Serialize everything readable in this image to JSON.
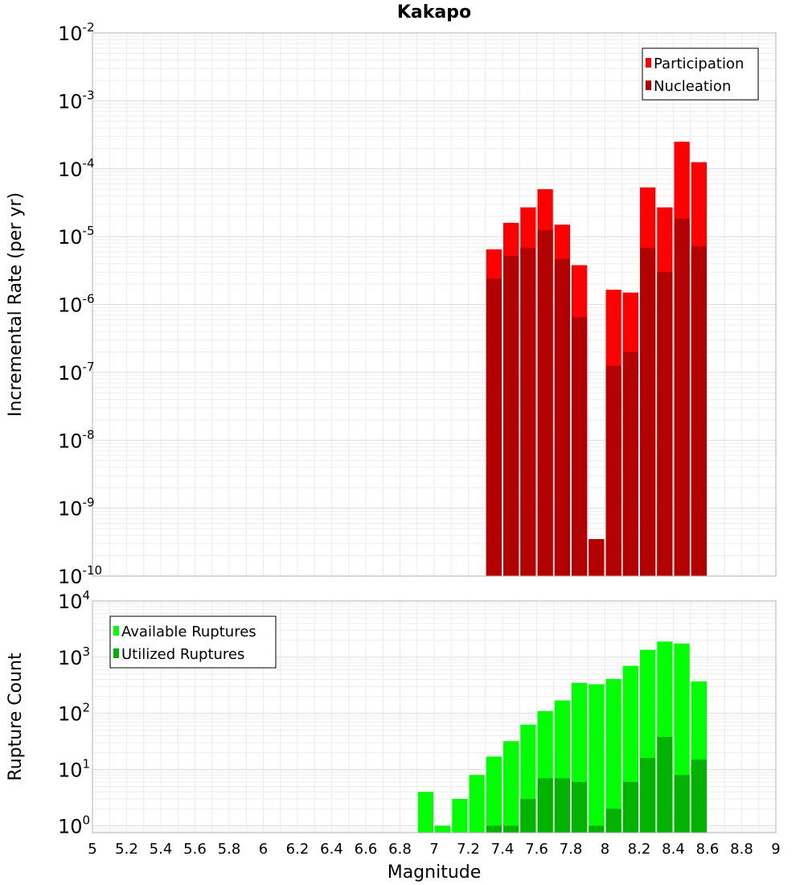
{
  "chart_data": [
    {
      "type": "bar",
      "title": "Kakapo",
      "xlabel": "",
      "ylabel": "Incremental Rate (per yr)",
      "yscale": "log",
      "ylim": [
        1e-10,
        0.01
      ],
      "xlim": [
        5,
        9
      ],
      "ytick_base": "10",
      "ytick_exponents": [
        "-10",
        "-9",
        "-8",
        "-7",
        "-6",
        "-5",
        "-4",
        "-3",
        "-2"
      ],
      "grid": true,
      "legend_position": "top-right",
      "bin_width": 0.1,
      "x": [
        7.35,
        7.45,
        7.55,
        7.65,
        7.75,
        7.85,
        7.95,
        8.05,
        8.15,
        8.25,
        8.35,
        8.45,
        8.55
      ],
      "series": [
        {
          "name": "Participation",
          "color": "#ff0000",
          "values": [
            6.5e-06,
            1.6e-05,
            2.7e-05,
            5e-05,
            1.5e-05,
            3.8e-06,
            3.5e-10,
            1.65e-06,
            1.5e-06,
            5.3e-05,
            2.7e-05,
            0.00025,
            0.000125
          ]
        },
        {
          "name": "Nucleation",
          "color": "#b30000",
          "values": [
            2.4e-06,
            5.2e-06,
            6.8e-06,
            1.25e-05,
            4.7e-06,
            6.5e-07,
            3.5e-10,
            1.25e-07,
            2e-07,
            6.8e-06,
            3e-06,
            1.85e-05,
            7.2e-06
          ]
        }
      ]
    },
    {
      "type": "bar",
      "title": "",
      "xlabel": "Magnitude",
      "ylabel": "Rupture Count",
      "yscale": "log",
      "ylim": [
        0.75,
        10000
      ],
      "xlim": [
        5,
        9
      ],
      "ytick_base": "10",
      "ytick_exponents": [
        "0",
        "1",
        "2",
        "3",
        "4"
      ],
      "xticks": [
        "5",
        "5.2",
        "5.4",
        "5.6",
        "5.8",
        "6",
        "6.2",
        "6.4",
        "6.6",
        "6.8",
        "7",
        "7.2",
        "7.4",
        "7.6",
        "7.8",
        "8",
        "8.2",
        "8.4",
        "8.6",
        "8.8",
        "9"
      ],
      "grid": true,
      "legend_position": "top-left",
      "bin_width": 0.1,
      "x": [
        6.95,
        7.05,
        7.15,
        7.25,
        7.35,
        7.45,
        7.55,
        7.65,
        7.75,
        7.85,
        7.95,
        8.05,
        8.15,
        8.25,
        8.35,
        8.45,
        8.55
      ],
      "series": [
        {
          "name": "Available Ruptures",
          "color": "#00ff00",
          "values": [
            4,
            1,
            3,
            8,
            17,
            32,
            63,
            110,
            170,
            350,
            330,
            410,
            700,
            1350,
            1900,
            1750,
            370
          ]
        },
        {
          "name": "Utilized Ruptures",
          "color": "#00b300",
          "values": [
            0,
            0,
            0,
            0,
            1,
            1,
            3,
            7,
            7,
            6,
            1,
            2,
            6,
            16,
            38,
            8,
            15
          ]
        }
      ]
    }
  ]
}
